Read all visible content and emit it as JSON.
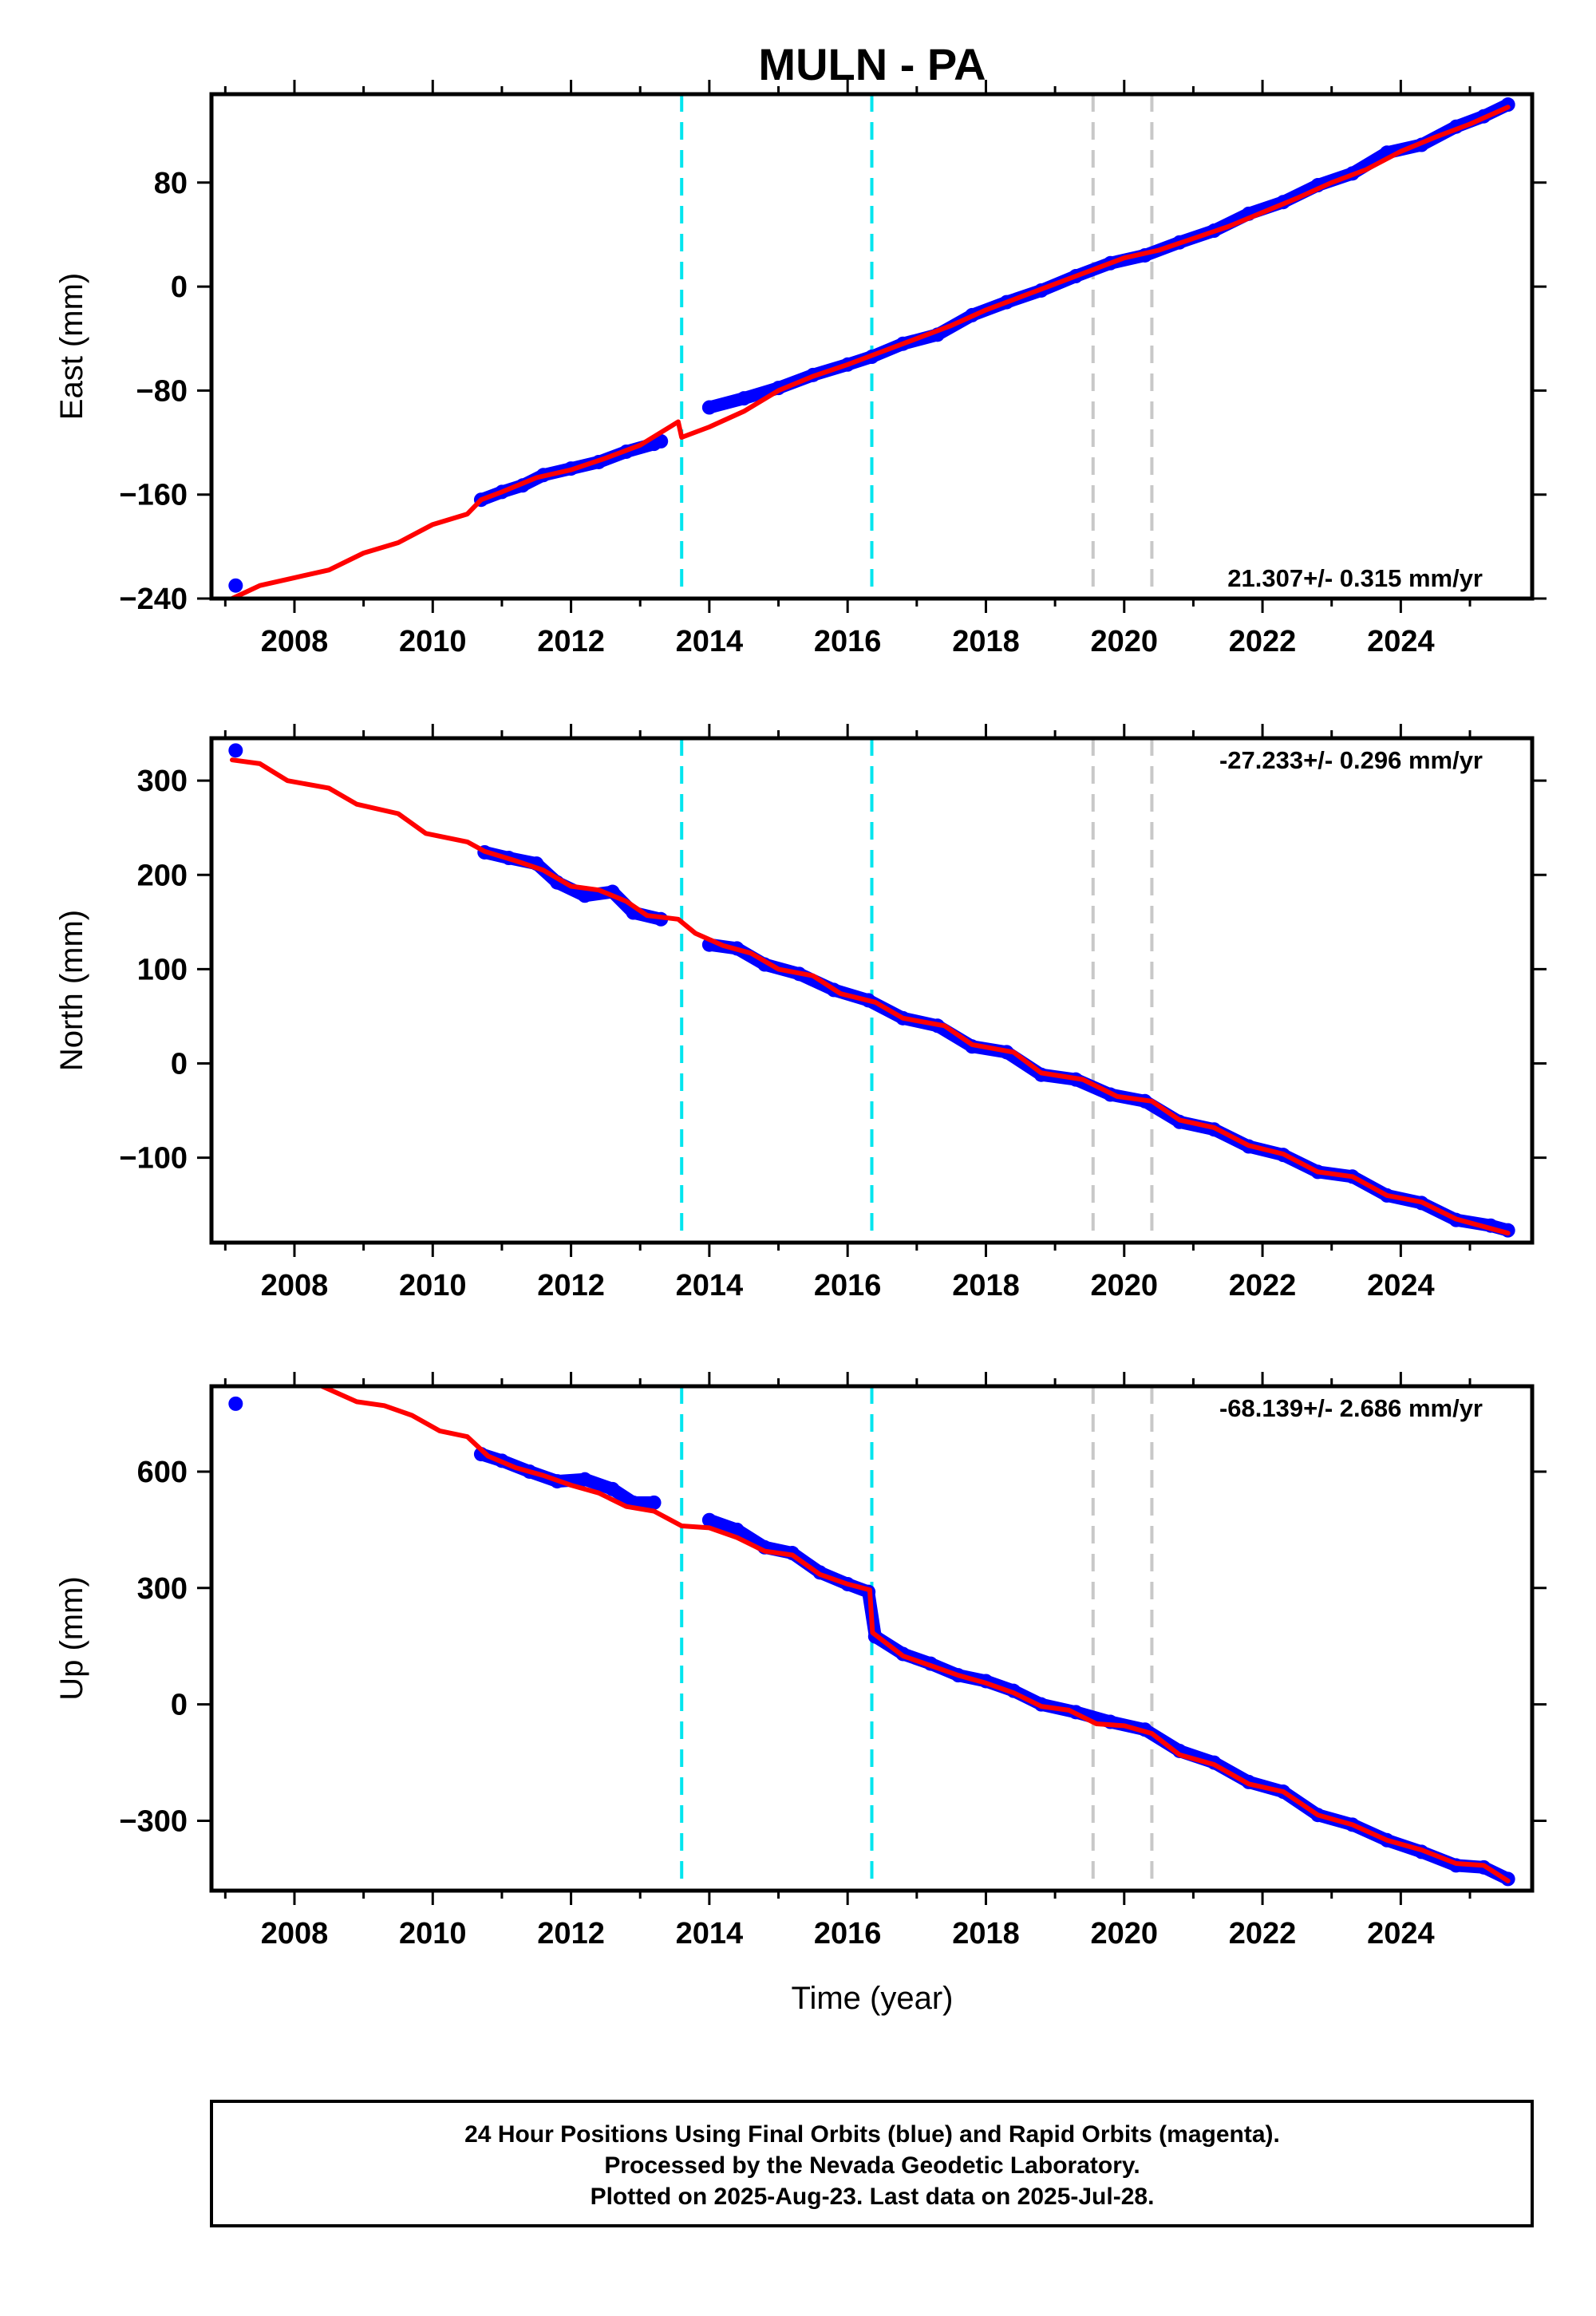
{
  "chart_data": {
    "type": "scatter",
    "title": "MULN - PA",
    "xlabel": "Time (year)",
    "xlim": [
      2006.8,
      2025.9
    ],
    "xticks": [
      "2008",
      "2010",
      "2012",
      "2014",
      "2016",
      "2018",
      "2020",
      "2022",
      "2024"
    ],
    "vlines": [
      {
        "x": 2013.6,
        "color": "#00e5ee"
      },
      {
        "x": 2016.35,
        "color": "#00e5ee"
      },
      {
        "x": 2019.55,
        "color": "#c8c8c8"
      },
      {
        "x": 2020.4,
        "color": "#c8c8c8"
      }
    ],
    "colors": {
      "observations": "#0000ff",
      "model": "#ff0000",
      "frame": "#000000"
    },
    "panels": [
      {
        "name": "east",
        "ylabel": "East (mm)",
        "ylim": [
          -240,
          148
        ],
        "yticks": [
          "80",
          "0",
          "−80",
          "−160",
          "−240"
        ],
        "ytick_values": [
          80,
          0,
          -80,
          -160,
          -240
        ],
        "rate": "21.307+/- 0.315 mm/yr",
        "rate_position": "bottom-right",
        "observations": [
          {
            "x": 2007.15,
            "y": -230
          },
          {
            "x": 2010.7,
            "y": -164
          },
          {
            "x": 2011.0,
            "y": -158
          },
          {
            "x": 2011.3,
            "y": -153
          },
          {
            "x": 2011.6,
            "y": -145
          },
          {
            "x": 2012.0,
            "y": -140
          },
          {
            "x": 2012.4,
            "y": -135
          },
          {
            "x": 2012.8,
            "y": -127
          },
          {
            "x": 2013.2,
            "y": -121
          },
          {
            "x": 2013.3,
            "y": -119
          },
          {
            "x": 2014.0,
            "y": -93
          },
          {
            "x": 2014.5,
            "y": -86
          },
          {
            "x": 2015.0,
            "y": -78
          },
          {
            "x": 2015.5,
            "y": -68
          },
          {
            "x": 2016.0,
            "y": -60
          },
          {
            "x": 2016.35,
            "y": -54
          },
          {
            "x": 2016.8,
            "y": -44
          },
          {
            "x": 2017.3,
            "y": -37
          },
          {
            "x": 2017.8,
            "y": -22
          },
          {
            "x": 2018.3,
            "y": -12
          },
          {
            "x": 2018.8,
            "y": -3
          },
          {
            "x": 2019.3,
            "y": 8
          },
          {
            "x": 2019.8,
            "y": 18
          },
          {
            "x": 2020.3,
            "y": 24
          },
          {
            "x": 2020.8,
            "y": 34
          },
          {
            "x": 2021.3,
            "y": 43
          },
          {
            "x": 2021.8,
            "y": 56
          },
          {
            "x": 2022.3,
            "y": 65
          },
          {
            "x": 2022.8,
            "y": 78
          },
          {
            "x": 2023.3,
            "y": 87
          },
          {
            "x": 2023.8,
            "y": 103
          },
          {
            "x": 2024.3,
            "y": 109
          },
          {
            "x": 2024.8,
            "y": 123
          },
          {
            "x": 2025.2,
            "y": 131
          },
          {
            "x": 2025.55,
            "y": 140
          }
        ],
        "model": [
          {
            "x": 2007.1,
            "y": -240
          },
          {
            "x": 2007.5,
            "y": -230
          },
          {
            "x": 2008.0,
            "y": -224
          },
          {
            "x": 2008.5,
            "y": -218
          },
          {
            "x": 2009.0,
            "y": -205
          },
          {
            "x": 2009.5,
            "y": -197
          },
          {
            "x": 2010.0,
            "y": -183
          },
          {
            "x": 2010.5,
            "y": -175
          },
          {
            "x": 2010.7,
            "y": -164
          },
          {
            "x": 2011.0,
            "y": -158
          },
          {
            "x": 2011.5,
            "y": -147
          },
          {
            "x": 2012.0,
            "y": -141
          },
          {
            "x": 2012.5,
            "y": -132
          },
          {
            "x": 2013.0,
            "y": -122
          },
          {
            "x": 2013.55,
            "y": -104
          },
          {
            "x": 2013.6,
            "y": -116
          },
          {
            "x": 2014.0,
            "y": -108
          },
          {
            "x": 2014.5,
            "y": -96
          },
          {
            "x": 2015.0,
            "y": -80
          },
          {
            "x": 2015.5,
            "y": -69
          },
          {
            "x": 2016.0,
            "y": -60
          },
          {
            "x": 2016.5,
            "y": -50
          },
          {
            "x": 2017.0,
            "y": -40
          },
          {
            "x": 2017.5,
            "y": -30
          },
          {
            "x": 2018.0,
            "y": -18
          },
          {
            "x": 2018.5,
            "y": -8
          },
          {
            "x": 2019.0,
            "y": 2
          },
          {
            "x": 2019.5,
            "y": 12
          },
          {
            "x": 2020.0,
            "y": 22
          },
          {
            "x": 2020.5,
            "y": 28
          },
          {
            "x": 2021.0,
            "y": 37
          },
          {
            "x": 2021.5,
            "y": 46
          },
          {
            "x": 2022.0,
            "y": 57
          },
          {
            "x": 2022.5,
            "y": 68
          },
          {
            "x": 2023.0,
            "y": 80
          },
          {
            "x": 2023.5,
            "y": 90
          },
          {
            "x": 2024.0,
            "y": 104
          },
          {
            "x": 2024.5,
            "y": 115
          },
          {
            "x": 2025.0,
            "y": 125
          },
          {
            "x": 2025.55,
            "y": 138
          }
        ]
      },
      {
        "name": "north",
        "ylabel": "North (mm)",
        "ylim": [
          -190,
          345
        ],
        "yticks": [
          "300",
          "200",
          "100",
          "0",
          "−100"
        ],
        "ytick_values": [
          300,
          200,
          100,
          0,
          -100
        ],
        "rate": "-27.233+/- 0.296 mm/yr",
        "rate_position": "top-right",
        "observations": [
          {
            "x": 2007.15,
            "y": 332
          },
          {
            "x": 2010.75,
            "y": 224
          },
          {
            "x": 2011.1,
            "y": 218
          },
          {
            "x": 2011.5,
            "y": 212
          },
          {
            "x": 2011.8,
            "y": 192
          },
          {
            "x": 2012.2,
            "y": 178
          },
          {
            "x": 2012.6,
            "y": 182
          },
          {
            "x": 2012.9,
            "y": 160
          },
          {
            "x": 2013.3,
            "y": 153
          },
          {
            "x": 2014.0,
            "y": 126
          },
          {
            "x": 2014.4,
            "y": 122
          },
          {
            "x": 2014.8,
            "y": 105
          },
          {
            "x": 2015.3,
            "y": 95
          },
          {
            "x": 2015.8,
            "y": 78
          },
          {
            "x": 2016.3,
            "y": 67
          },
          {
            "x": 2016.8,
            "y": 48
          },
          {
            "x": 2017.3,
            "y": 40
          },
          {
            "x": 2017.8,
            "y": 18
          },
          {
            "x": 2018.3,
            "y": 12
          },
          {
            "x": 2018.8,
            "y": -12
          },
          {
            "x": 2019.3,
            "y": -17
          },
          {
            "x": 2019.8,
            "y": -33
          },
          {
            "x": 2020.3,
            "y": -40
          },
          {
            "x": 2020.8,
            "y": -62
          },
          {
            "x": 2021.3,
            "y": -70
          },
          {
            "x": 2021.8,
            "y": -88
          },
          {
            "x": 2022.3,
            "y": -97
          },
          {
            "x": 2022.8,
            "y": -115
          },
          {
            "x": 2023.3,
            "y": -120
          },
          {
            "x": 2023.8,
            "y": -140
          },
          {
            "x": 2024.3,
            "y": -148
          },
          {
            "x": 2024.8,
            "y": -166
          },
          {
            "x": 2025.3,
            "y": -172
          },
          {
            "x": 2025.55,
            "y": -177
          }
        ],
        "model": [
          {
            "x": 2007.1,
            "y": 322
          },
          {
            "x": 2007.5,
            "y": 318
          },
          {
            "x": 2007.9,
            "y": 300
          },
          {
            "x": 2008.5,
            "y": 292
          },
          {
            "x": 2008.9,
            "y": 275
          },
          {
            "x": 2009.5,
            "y": 265
          },
          {
            "x": 2009.9,
            "y": 244
          },
          {
            "x": 2010.5,
            "y": 235
          },
          {
            "x": 2010.75,
            "y": 225
          },
          {
            "x": 2011.2,
            "y": 215
          },
          {
            "x": 2011.6,
            "y": 205
          },
          {
            "x": 2012.0,
            "y": 188
          },
          {
            "x": 2012.4,
            "y": 184
          },
          {
            "x": 2012.8,
            "y": 172
          },
          {
            "x": 2013.1,
            "y": 157
          },
          {
            "x": 2013.55,
            "y": 153
          },
          {
            "x": 2013.8,
            "y": 138
          },
          {
            "x": 2014.2,
            "y": 125
          },
          {
            "x": 2014.6,
            "y": 117
          },
          {
            "x": 2015.0,
            "y": 100
          },
          {
            "x": 2015.5,
            "y": 93
          },
          {
            "x": 2015.9,
            "y": 74
          },
          {
            "x": 2016.4,
            "y": 65
          },
          {
            "x": 2016.8,
            "y": 48
          },
          {
            "x": 2017.4,
            "y": 40
          },
          {
            "x": 2017.8,
            "y": 20
          },
          {
            "x": 2018.4,
            "y": 12
          },
          {
            "x": 2018.8,
            "y": -10
          },
          {
            "x": 2019.4,
            "y": -17
          },
          {
            "x": 2019.9,
            "y": -35
          },
          {
            "x": 2020.4,
            "y": -40
          },
          {
            "x": 2020.8,
            "y": -60
          },
          {
            "x": 2021.3,
            "y": -68
          },
          {
            "x": 2021.8,
            "y": -87
          },
          {
            "x": 2022.3,
            "y": -96
          },
          {
            "x": 2022.8,
            "y": -115
          },
          {
            "x": 2023.3,
            "y": -120
          },
          {
            "x": 2023.8,
            "y": -140
          },
          {
            "x": 2024.3,
            "y": -147
          },
          {
            "x": 2024.8,
            "y": -165
          },
          {
            "x": 2025.55,
            "y": -180
          }
        ]
      },
      {
        "name": "up",
        "ylabel": "Up (mm)",
        "ylim": [
          -480,
          820
        ],
        "yticks": [
          "600",
          "300",
          "0",
          "−300"
        ],
        "ytick_values": [
          600,
          300,
          0,
          -300
        ],
        "rate": "-68.139+/- 2.686 mm/yr",
        "rate_position": "top-right",
        "observations": [
          {
            "x": 2007.15,
            "y": 775
          },
          {
            "x": 2010.7,
            "y": 645
          },
          {
            "x": 2011.0,
            "y": 628
          },
          {
            "x": 2011.4,
            "y": 600
          },
          {
            "x": 2011.8,
            "y": 575
          },
          {
            "x": 2012.2,
            "y": 580
          },
          {
            "x": 2012.6,
            "y": 555
          },
          {
            "x": 2012.9,
            "y": 520
          },
          {
            "x": 2013.2,
            "y": 520
          },
          {
            "x": 2014.0,
            "y": 475
          },
          {
            "x": 2014.4,
            "y": 450
          },
          {
            "x": 2014.8,
            "y": 405
          },
          {
            "x": 2015.2,
            "y": 390
          },
          {
            "x": 2015.6,
            "y": 340
          },
          {
            "x": 2016.0,
            "y": 310
          },
          {
            "x": 2016.3,
            "y": 290
          },
          {
            "x": 2016.4,
            "y": 175
          },
          {
            "x": 2016.8,
            "y": 130
          },
          {
            "x": 2017.2,
            "y": 105
          },
          {
            "x": 2017.6,
            "y": 75
          },
          {
            "x": 2018.0,
            "y": 60
          },
          {
            "x": 2018.4,
            "y": 35
          },
          {
            "x": 2018.8,
            "y": 0
          },
          {
            "x": 2019.3,
            "y": -20
          },
          {
            "x": 2019.8,
            "y": -45
          },
          {
            "x": 2020.3,
            "y": -65
          },
          {
            "x": 2020.8,
            "y": -120
          },
          {
            "x": 2021.3,
            "y": -150
          },
          {
            "x": 2021.8,
            "y": -200
          },
          {
            "x": 2022.3,
            "y": -225
          },
          {
            "x": 2022.8,
            "y": -285
          },
          {
            "x": 2023.3,
            "y": -310
          },
          {
            "x": 2023.8,
            "y": -350
          },
          {
            "x": 2024.3,
            "y": -380
          },
          {
            "x": 2024.8,
            "y": -415
          },
          {
            "x": 2025.2,
            "y": -420
          },
          {
            "x": 2025.55,
            "y": -450
          }
        ],
        "model": [
          {
            "x": 2008.4,
            "y": 820
          },
          {
            "x": 2008.9,
            "y": 780
          },
          {
            "x": 2009.3,
            "y": 770
          },
          {
            "x": 2009.7,
            "y": 745
          },
          {
            "x": 2010.1,
            "y": 705
          },
          {
            "x": 2010.5,
            "y": 690
          },
          {
            "x": 2010.8,
            "y": 640
          },
          {
            "x": 2011.2,
            "y": 610
          },
          {
            "x": 2011.6,
            "y": 590
          },
          {
            "x": 2012.0,
            "y": 565
          },
          {
            "x": 2012.4,
            "y": 545
          },
          {
            "x": 2012.8,
            "y": 510
          },
          {
            "x": 2013.2,
            "y": 498
          },
          {
            "x": 2013.6,
            "y": 460
          },
          {
            "x": 2014.0,
            "y": 455
          },
          {
            "x": 2014.4,
            "y": 430
          },
          {
            "x": 2014.8,
            "y": 395
          },
          {
            "x": 2015.2,
            "y": 385
          },
          {
            "x": 2015.6,
            "y": 335
          },
          {
            "x": 2016.0,
            "y": 310
          },
          {
            "x": 2016.32,
            "y": 295
          },
          {
            "x": 2016.36,
            "y": 185
          },
          {
            "x": 2016.8,
            "y": 125
          },
          {
            "x": 2017.2,
            "y": 100
          },
          {
            "x": 2017.6,
            "y": 75
          },
          {
            "x": 2018.0,
            "y": 55
          },
          {
            "x": 2018.4,
            "y": 30
          },
          {
            "x": 2018.8,
            "y": -5
          },
          {
            "x": 2019.2,
            "y": -15
          },
          {
            "x": 2019.6,
            "y": -50
          },
          {
            "x": 2020.0,
            "y": -55
          },
          {
            "x": 2020.4,
            "y": -75
          },
          {
            "x": 2020.8,
            "y": -130
          },
          {
            "x": 2021.3,
            "y": -155
          },
          {
            "x": 2021.8,
            "y": -205
          },
          {
            "x": 2022.3,
            "y": -225
          },
          {
            "x": 2022.8,
            "y": -285
          },
          {
            "x": 2023.3,
            "y": -310
          },
          {
            "x": 2023.8,
            "y": -350
          },
          {
            "x": 2024.3,
            "y": -375
          },
          {
            "x": 2024.8,
            "y": -410
          },
          {
            "x": 2025.2,
            "y": -415
          },
          {
            "x": 2025.55,
            "y": -455
          }
        ]
      }
    ]
  },
  "footer": {
    "line1": "24 Hour Positions Using Final Orbits (blue) and Rapid Orbits (magenta).",
    "line2": "Processed by the Nevada Geodetic Laboratory.",
    "line3": "Plotted on 2025-Aug-23. Last data on 2025-Jul-28."
  }
}
